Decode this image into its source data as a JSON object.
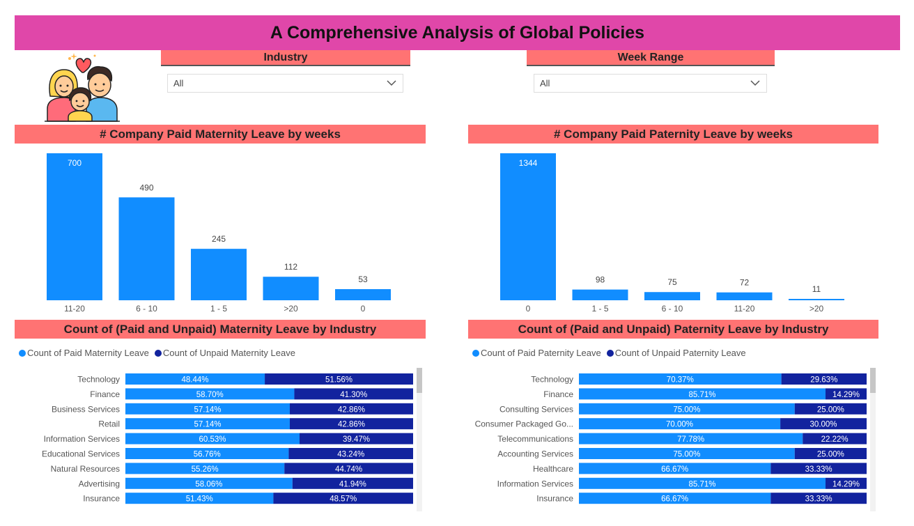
{
  "header": {
    "title": "A Comprehensive Analysis of Global Policies"
  },
  "filters": {
    "industry": {
      "label": "Industry",
      "value": "All"
    },
    "week_range": {
      "label": "Week Range",
      "value": "All"
    }
  },
  "colors": {
    "paid": "#118dff",
    "unpaid": "#12239e",
    "banner": "#e047a9",
    "panel_header": "#ff7373"
  },
  "icons": {
    "family": "family-icon",
    "dropdown": "chevron-down-icon"
  },
  "chart_data": [
    {
      "type": "bar",
      "title": "# Company Paid Maternity Leave by weeks",
      "categories": [
        "11-20",
        "6 - 10",
        "1 - 5",
        ">20",
        "0"
      ],
      "values": [
        700,
        490,
        245,
        112,
        53
      ]
    },
    {
      "type": "bar",
      "title": "# Company Paid Paternity Leave by weeks",
      "categories": [
        "0",
        "1 - 5",
        "6 - 10",
        "11-20",
        ">20"
      ],
      "values": [
        1344,
        98,
        75,
        72,
        11
      ]
    },
    {
      "type": "bar",
      "orientation": "horizontal",
      "stacked": "100%",
      "title": "Count of (Paid and Unpaid) Maternity Leave by Industry",
      "legend_position": "top-left",
      "categories": [
        "Technology",
        "Finance",
        "Business Services",
        "Retail",
        "Information Services",
        "Educational Services",
        "Natural Resources",
        "Advertising",
        "Insurance"
      ],
      "series": [
        {
          "name": "Count of Paid Maternity Leave",
          "values": [
            "48.44%",
            "58.70%",
            "57.14%",
            "57.14%",
            "60.53%",
            "56.76%",
            "55.26%",
            "58.06%",
            "51.43%"
          ]
        },
        {
          "name": "Count of Unpaid Maternity Leave",
          "values": [
            "51.56%",
            "41.30%",
            "42.86%",
            "42.86%",
            "39.47%",
            "43.24%",
            "44.74%",
            "41.94%",
            "48.57%"
          ]
        }
      ]
    },
    {
      "type": "bar",
      "orientation": "horizontal",
      "stacked": "100%",
      "title": "Count of (Paid and Unpaid) Paternity Leave by Industry",
      "legend_position": "top-left",
      "categories": [
        "Technology",
        "Finance",
        "Consulting Services",
        "Consumer Packaged Go...",
        "Telecommunications",
        "Accounting Services",
        "Healthcare",
        "Information Services",
        "Insurance"
      ],
      "series": [
        {
          "name": "Count of Paid Paternity Leave",
          "values": [
            "70.37%",
            "85.71%",
            "75.00%",
            "70.00%",
            "77.78%",
            "75.00%",
            "66.67%",
            "85.71%",
            "66.67%"
          ]
        },
        {
          "name": "Count of Unpaid Paternity Leave",
          "values": [
            "29.63%",
            "14.29%",
            "25.00%",
            "30.00%",
            "22.22%",
            "25.00%",
            "33.33%",
            "14.29%",
            "33.33%"
          ]
        }
      ]
    }
  ]
}
